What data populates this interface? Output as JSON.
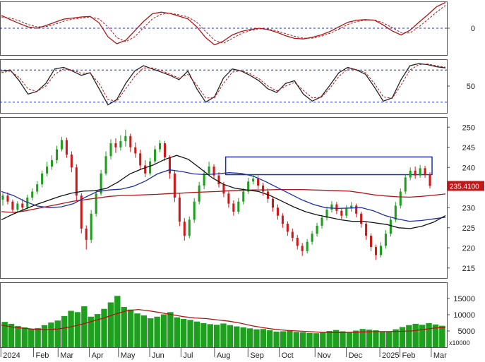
{
  "chart_data": [
    {
      "type": "line",
      "panel": "macd",
      "y_ticks": [
        "0"
      ],
      "ylim": [
        -1.0,
        1.0
      ],
      "series": [
        {
          "style": "solid",
          "color": "#b01515",
          "values": [
            0.48,
            0.32,
            0.18,
            0.05,
            0.0,
            0.1,
            0.22,
            0.34,
            0.38,
            0.42,
            0.44,
            0.2,
            -0.32,
            -0.58,
            -0.45,
            -0.1,
            0.25,
            0.54,
            0.6,
            0.55,
            0.45,
            0.35,
            0.05,
            -0.35,
            -0.62,
            -0.48,
            -0.25,
            -0.12,
            -0.05,
            0.0,
            -0.05,
            -0.15,
            -0.28,
            -0.38,
            -0.4,
            -0.34,
            -0.25,
            -0.12,
            0.05,
            0.22,
            0.3,
            0.32,
            0.3,
            0.12,
            -0.1,
            -0.25,
            -0.08,
            0.22,
            0.5,
            0.8,
            0.96
          ]
        },
        {
          "style": "dashed",
          "color": "#b01515",
          "values": [
            0.42,
            0.38,
            0.28,
            0.14,
            0.05,
            0.06,
            0.14,
            0.26,
            0.34,
            0.38,
            0.42,
            0.34,
            0.05,
            -0.35,
            -0.5,
            -0.32,
            0.02,
            0.35,
            0.52,
            0.56,
            0.5,
            0.42,
            0.22,
            -0.12,
            -0.45,
            -0.56,
            -0.38,
            -0.2,
            -0.09,
            -0.02,
            -0.03,
            -0.1,
            -0.2,
            -0.3,
            -0.37,
            -0.37,
            -0.3,
            -0.19,
            -0.04,
            0.14,
            0.25,
            0.3,
            0.31,
            0.2,
            0.02,
            -0.16,
            -0.18,
            0.05,
            0.32,
            0.6,
            0.85
          ]
        }
      ]
    },
    {
      "type": "line",
      "panel": "stochastic",
      "y_ticks": [
        "50"
      ],
      "ylim": [
        0,
        100
      ],
      "reference_lines": [
        80,
        20
      ],
      "series": [
        {
          "style": "solid",
          "color": "#222222",
          "values": [
            78,
            80,
            60,
            35,
            40,
            55,
            82,
            85,
            78,
            70,
            75,
            45,
            15,
            25,
            55,
            78,
            88,
            82,
            76,
            70,
            62,
            78,
            45,
            20,
            30,
            65,
            82,
            78,
            70,
            60,
            45,
            38,
            55,
            60,
            35,
            22,
            30,
            52,
            75,
            85,
            80,
            72,
            48,
            22,
            28,
            62,
            88,
            92,
            90,
            86,
            84
          ]
        },
        {
          "style": "dashed",
          "color": "#b01515",
          "values": [
            75,
            78,
            66,
            45,
            40,
            50,
            72,
            82,
            80,
            74,
            74,
            55,
            25,
            22,
            45,
            68,
            84,
            84,
            79,
            72,
            65,
            72,
            52,
            28,
            28,
            55,
            76,
            79,
            73,
            64,
            50,
            41,
            50,
            57,
            42,
            28,
            29,
            46,
            68,
            82,
            81,
            75,
            55,
            30,
            27,
            52,
            80,
            90,
            91,
            88,
            85
          ]
        }
      ]
    },
    {
      "type": "candlestick",
      "panel": "price",
      "y_ticks": [
        "250",
        "245",
        "240",
        "235",
        "230",
        "225",
        "220",
        "215"
      ],
      "ylim": [
        212.5,
        252.5
      ],
      "last_price_label": "235.4100",
      "candles": [
        [
          232.0,
          233.0,
          230.5,
          233.6
        ],
        [
          233.0,
          231.5,
          230.8,
          233.8
        ],
        [
          231.5,
          229.5,
          228.8,
          232.0
        ],
        [
          229.5,
          231.0,
          229.0,
          231.6
        ],
        [
          231.0,
          230.0,
          229.2,
          232.2
        ],
        [
          230.0,
          232.5,
          229.6,
          233.2
        ],
        [
          232.5,
          234.0,
          231.8,
          234.8
        ],
        [
          234.0,
          235.8,
          233.4,
          236.6
        ],
        [
          235.8,
          238.5,
          235.0,
          239.2
        ],
        [
          238.5,
          240.2,
          237.8,
          241.4
        ],
        [
          240.2,
          241.8,
          239.4,
          243.0
        ],
        [
          241.8,
          244.5,
          241.0,
          245.4
        ],
        [
          244.5,
          246.8,
          244.0,
          247.6
        ],
        [
          246.8,
          243.2,
          242.4,
          247.4
        ],
        [
          243.2,
          240.0,
          238.8,
          244.0
        ],
        [
          240.0,
          233.0,
          231.8,
          240.8
        ],
        [
          233.0,
          224.8,
          223.6,
          233.6
        ],
        [
          224.8,
          222.0,
          219.6,
          225.6
        ],
        [
          222.0,
          228.5,
          221.2,
          229.4
        ],
        [
          228.5,
          233.5,
          227.8,
          234.4
        ],
        [
          233.5,
          238.5,
          233.0,
          239.4
        ],
        [
          238.5,
          242.8,
          238.0,
          244.0
        ],
        [
          242.8,
          246.0,
          242.0,
          247.0
        ],
        [
          246.0,
          245.0,
          243.6,
          247.2
        ],
        [
          245.0,
          246.5,
          244.2,
          248.0
        ],
        [
          246.5,
          247.8,
          245.2,
          249.4
        ],
        [
          247.8,
          245.0,
          243.8,
          248.4
        ],
        [
          245.0,
          243.5,
          242.4,
          246.2
        ],
        [
          243.5,
          240.5,
          239.6,
          244.4
        ],
        [
          240.5,
          238.5,
          237.6,
          241.8
        ],
        [
          238.5,
          241.5,
          238.0,
          242.4
        ],
        [
          241.5,
          244.5,
          240.8,
          245.4
        ],
        [
          244.5,
          246.0,
          243.8,
          246.8
        ],
        [
          246.0,
          242.5,
          241.6,
          246.6
        ],
        [
          242.5,
          238.5,
          237.2,
          243.0
        ],
        [
          238.5,
          232.5,
          231.4,
          239.2
        ],
        [
          232.5,
          226.5,
          225.4,
          233.6
        ],
        [
          226.5,
          223.0,
          221.8,
          227.4
        ],
        [
          223.0,
          227.0,
          222.4,
          227.8
        ],
        [
          227.0,
          231.5,
          226.2,
          232.4
        ],
        [
          231.5,
          235.5,
          230.8,
          236.4
        ],
        [
          235.5,
          238.5,
          234.6,
          239.4
        ],
        [
          238.5,
          240.2,
          237.8,
          241.4
        ],
        [
          240.2,
          238.0,
          237.0,
          240.8
        ],
        [
          238.0,
          235.8,
          235.0,
          238.8
        ],
        [
          235.8,
          233.5,
          232.6,
          236.4
        ],
        [
          233.5,
          231.0,
          230.0,
          234.2
        ],
        [
          231.0,
          229.0,
          228.0,
          231.8
        ],
        [
          229.0,
          231.5,
          228.4,
          232.4
        ],
        [
          231.5,
          234.0,
          230.8,
          234.8
        ],
        [
          234.0,
          236.5,
          233.4,
          237.4
        ],
        [
          236.5,
          237.2,
          235.8,
          238.2
        ],
        [
          237.2,
          235.5,
          234.6,
          238.0
        ],
        [
          235.5,
          234.0,
          233.0,
          236.2
        ],
        [
          234.0,
          232.2,
          231.2,
          234.8
        ],
        [
          232.2,
          230.0,
          229.0,
          232.8
        ],
        [
          230.0,
          228.0,
          227.0,
          230.8
        ],
        [
          228.0,
          226.0,
          225.0,
          228.6
        ],
        [
          226.0,
          224.0,
          223.0,
          226.6
        ],
        [
          224.0,
          222.5,
          221.6,
          224.8
        ],
        [
          222.5,
          220.5,
          219.6,
          223.2
        ],
        [
          220.5,
          219.2,
          218.0,
          221.2
        ],
        [
          219.2,
          221.5,
          218.6,
          222.2
        ],
        [
          221.5,
          223.5,
          220.8,
          224.2
        ],
        [
          223.5,
          225.5,
          222.8,
          226.2
        ],
        [
          225.5,
          227.5,
          224.8,
          228.2
        ],
        [
          227.5,
          229.5,
          226.8,
          230.2
        ],
        [
          229.5,
          230.8,
          228.8,
          231.6
        ],
        [
          230.8,
          229.2,
          228.4,
          231.4
        ],
        [
          229.2,
          228.0,
          227.2,
          229.8
        ],
        [
          228.0,
          229.8,
          227.4,
          230.6
        ],
        [
          229.8,
          230.5,
          229.0,
          231.4
        ],
        [
          230.5,
          228.5,
          227.6,
          231.0
        ],
        [
          228.5,
          226.0,
          225.0,
          229.0
        ],
        [
          226.0,
          223.0,
          222.0,
          226.6
        ],
        [
          223.0,
          220.2,
          219.2,
          223.6
        ],
        [
          220.2,
          218.2,
          217.0,
          220.8
        ],
        [
          218.2,
          220.5,
          217.6,
          221.4
        ],
        [
          220.5,
          223.5,
          219.8,
          224.4
        ],
        [
          223.5,
          227.0,
          222.8,
          227.8
        ],
        [
          227.0,
          230.5,
          226.4,
          231.4
        ],
        [
          230.5,
          234.0,
          229.8,
          234.8
        ],
        [
          234.0,
          237.5,
          233.4,
          238.2
        ],
        [
          237.5,
          239.2,
          236.8,
          240.0
        ],
        [
          239.2,
          238.0,
          237.2,
          240.2
        ],
        [
          238.0,
          239.8,
          237.4,
          240.6
        ],
        [
          239.8,
          238.2,
          237.4,
          240.4
        ],
        [
          238.2,
          235.4,
          234.8,
          238.8
        ]
      ],
      "series": [
        {
          "style": "solid",
          "color": "#b01515",
          "values": [
            229.0,
            228.8,
            229.2,
            229.8,
            230.4,
            231.0,
            231.6,
            232.0,
            232.4,
            232.8,
            233.0,
            233.1,
            233.2,
            233.3,
            233.5,
            233.6,
            233.8,
            233.9,
            234.0,
            234.2,
            234.3,
            234.4,
            234.4,
            234.5,
            234.5,
            234.5,
            234.4,
            234.3,
            234.2,
            234.1,
            233.7,
            233.2,
            232.9,
            232.7,
            232.6,
            232.8,
            233.1,
            233.4
          ]
        },
        {
          "style": "solid",
          "color": "#1c2fa8",
          "values": [
            234.0,
            233.0,
            231.5,
            230.4,
            230.0,
            230.2,
            231.0,
            232.6,
            234.0,
            234.4,
            234.6,
            235.3,
            236.6,
            238.4,
            239.4,
            239.0,
            238.4,
            238.2,
            238.4,
            238.7,
            238.5,
            237.8,
            236.5,
            235.0,
            233.5,
            232.0,
            230.8,
            230.0,
            229.8,
            229.9,
            230.0,
            229.2,
            228.0,
            227.2,
            226.6,
            226.8,
            227.2,
            227.6
          ]
        },
        {
          "style": "solid",
          "color": "#111111",
          "values": [
            227.0,
            228.4,
            229.6,
            230.8,
            231.8,
            232.8,
            233.6,
            234.1,
            234.2,
            234.8,
            236.4,
            238.4,
            239.6,
            240.6,
            242.0,
            243.0,
            242.0,
            239.8,
            237.5,
            235.8,
            234.8,
            234.4,
            234.0,
            233.0,
            231.6,
            230.2,
            229.0,
            228.2,
            227.6,
            227.0,
            226.6,
            226.6,
            226.2,
            225.8,
            225.0,
            224.8,
            225.4,
            226.4,
            228.0
          ]
        }
      ]
    },
    {
      "type": "bar",
      "panel": "volume",
      "y_ticks": [
        "15000",
        "10000",
        "5000"
      ],
      "unit_label": "x10000",
      "ylim": [
        0,
        20000
      ],
      "values": [
        7800,
        7200,
        6500,
        6100,
        5600,
        5900,
        6800,
        7600,
        8200,
        9600,
        11200,
        10800,
        12600,
        9400,
        10200,
        11800,
        13800,
        15800,
        12400,
        11600,
        10400,
        9800,
        8900,
        9400,
        10100,
        10800,
        9200,
        8700,
        8400,
        7900,
        7400,
        7100,
        6900,
        7300,
        6800,
        6400,
        6100,
        5800,
        5500,
        5600,
        5200,
        4800,
        4900,
        5100,
        4700,
        4600,
        4400,
        4300,
        4600,
        5000,
        5300,
        4900,
        4700,
        5100,
        5600,
        5400,
        5200,
        4900,
        4800,
        5500,
        6200,
        6800,
        7200,
        6900,
        7400,
        7000,
        6600
      ],
      "series": [
        {
          "style": "solid",
          "color": "#b01515",
          "values": [
            6800,
            6200,
            5800,
            5500,
            5400,
            5600,
            6200,
            7000,
            8000,
            9000,
            10200,
            11200,
            11600,
            11200,
            10600,
            10000,
            9400,
            9000,
            8800,
            8400,
            8000,
            7400,
            6600,
            6000,
            5500,
            5200,
            5000,
            4800,
            4600,
            4500,
            4500,
            4600,
            4700,
            4800,
            4800,
            4900,
            5000,
            5400,
            5900,
            6100
          ]
        }
      ]
    }
  ],
  "x_axis": {
    "labels": [
      "2024",
      "Feb",
      "Mar",
      "Apr",
      "May",
      "Jun",
      "Jul",
      "Aug",
      "Sep",
      "Oct",
      "Nov",
      "Dec",
      "2025",
      "Feb",
      "Mar"
    ]
  },
  "highlight_box": {
    "color": "#1c2fa8",
    "y_low": 238.2,
    "y_high": 242.6
  }
}
